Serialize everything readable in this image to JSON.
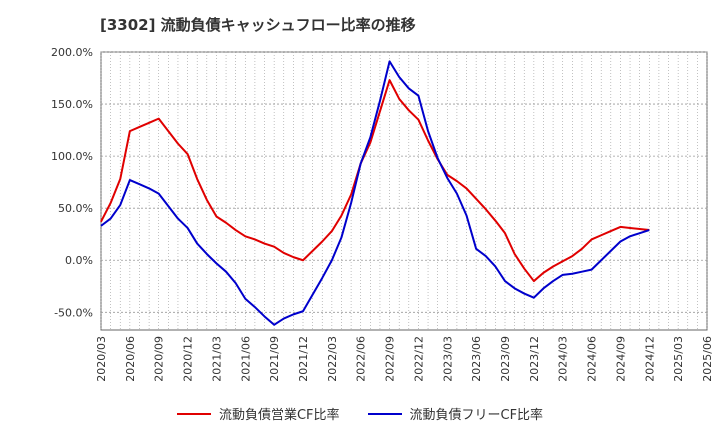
{
  "title": "[3302]  流動負債キャッシュフロー比率の推移",
  "colors": {
    "series1": "#e00000",
    "series2": "#0000cc",
    "grid": "#999999",
    "axis": "#666666"
  },
  "chart_data": {
    "type": "line",
    "title": "[3302]  流動負債キャッシュフロー比率の推移",
    "ylim": [
      -67,
      200
    ],
    "yticks": [
      200,
      150,
      100,
      50,
      0,
      -50
    ],
    "ytick_labels": [
      "200.0%",
      "150.0%",
      "100.0%",
      "50.0%",
      "0.0%",
      "-50.0%"
    ],
    "x_range": [
      "2020/03",
      "2025/06"
    ],
    "xtick_labels": [
      "2020/03",
      "2020/06",
      "2020/09",
      "2020/12",
      "2021/03",
      "2021/06",
      "2021/09",
      "2021/12",
      "2022/03",
      "2022/06",
      "2022/09",
      "2022/12",
      "2023/03",
      "2023/06",
      "2023/09",
      "2023/12",
      "2024/03",
      "2024/06",
      "2024/09",
      "2024/12",
      "2025/03",
      "2025/06"
    ],
    "grid": true,
    "legend_position": "bottom",
    "x": [
      "2020/03",
      "2020/04",
      "2020/05",
      "2020/06",
      "2020/07",
      "2020/08",
      "2020/09",
      "2020/10",
      "2020/11",
      "2020/12",
      "2021/01",
      "2021/02",
      "2021/03",
      "2021/04",
      "2021/05",
      "2021/06",
      "2021/07",
      "2021/08",
      "2021/09",
      "2021/10",
      "2021/11",
      "2021/12",
      "2022/01",
      "2022/02",
      "2022/03",
      "2022/04",
      "2022/05",
      "2022/06",
      "2022/07",
      "2022/08",
      "2022/09",
      "2022/10",
      "2022/11",
      "2022/12",
      "2023/01",
      "2023/02",
      "2023/03",
      "2023/04",
      "2023/05",
      "2023/06",
      "2023/07",
      "2023/08",
      "2023/09",
      "2023/10",
      "2023/11",
      "2023/12",
      "2024/01",
      "2024/02",
      "2024/03",
      "2024/04",
      "2024/05",
      "2024/06",
      "2024/07",
      "2024/08",
      "2024/09",
      "2024/10",
      "2024/11",
      "2024/12"
    ],
    "series": [
      {
        "name": "流動負債営業CF比率",
        "color": "#e00000",
        "values": [
          37,
          55,
          78,
          124,
          128,
          132,
          136,
          124,
          112,
          102,
          78,
          58,
          42,
          36,
          29,
          23,
          20,
          16,
          13,
          7,
          3,
          0,
          9,
          18,
          28,
          43,
          63,
          93,
          113,
          143,
          173,
          155,
          144,
          135,
          115,
          97,
          82,
          76,
          69,
          59,
          49,
          38,
          26,
          6,
          -8,
          -20,
          -12,
          -6,
          -1,
          4,
          11,
          20,
          24,
          28,
          32,
          31,
          30,
          29
        ]
      },
      {
        "name": "流動負債フリーCF比率",
        "color": "#0000cc",
        "values": [
          33,
          40,
          53,
          77,
          73,
          69,
          64,
          52,
          40,
          31,
          16,
          6,
          -3,
          -11,
          -22,
          -37,
          -45,
          -54,
          -62,
          -56,
          -52,
          -49,
          -33,
          -17,
          0,
          22,
          55,
          93,
          118,
          153,
          191,
          176,
          165,
          158,
          124,
          98,
          79,
          64,
          43,
          11,
          4,
          -6,
          -20,
          -27,
          -32,
          -36,
          -27,
          -20,
          -14,
          -13,
          -11,
          -9,
          0,
          9,
          18,
          23,
          26,
          29
        ]
      }
    ]
  }
}
